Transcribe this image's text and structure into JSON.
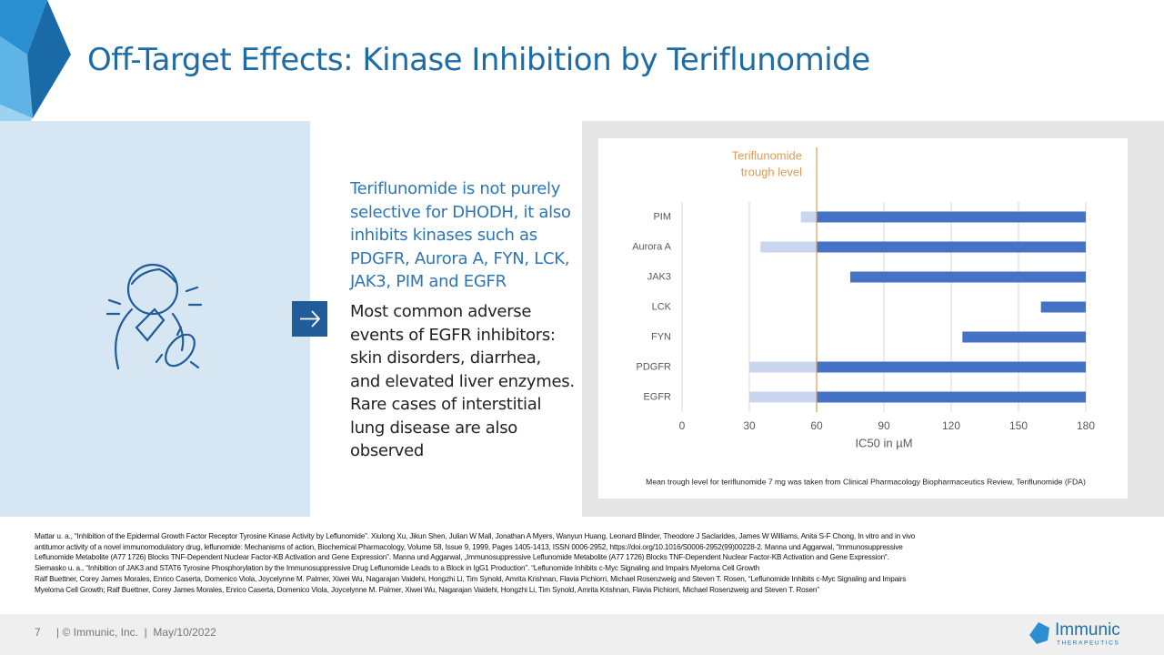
{
  "title": "Off-Target Effects: Kinase Inhibition by Teriflunomide",
  "body": {
    "highlight_lines": [
      "Teriflunomide is not purely",
      "selective for DHODH, it also",
      "inhibits kinases such as",
      "PDGFR, Aurora A, FYN, LCK,",
      "JAK3, PIM and EGFR"
    ],
    "detail_lines": [
      "Most common adverse",
      "events of EGFR inhibitors:",
      "skin disorders, diarrhea,",
      "and elevated liver enzymes.",
      "Rare cases of interstitial",
      "lung disease are also",
      "observed"
    ]
  },
  "chart_data": {
    "type": "range_bar",
    "categories": [
      "PIM",
      "Aurora A",
      "JAK3",
      "LCK",
      "FYN",
      "PDGFR",
      "EGFR"
    ],
    "low": [
      53,
      35,
      75,
      160,
      125,
      30,
      30
    ],
    "high": [
      180,
      180,
      180,
      180,
      180,
      180,
      180
    ],
    "colors": {
      "above_reference": "#4472c4",
      "below_reference": "#c9d6ee"
    },
    "reference_line": {
      "value": 60,
      "label": [
        "Teriflunomide",
        "trough level"
      ],
      "color": "#e09a55"
    },
    "xlim": [
      0,
      180
    ],
    "xticks": [
      0,
      30,
      60,
      90,
      120,
      150,
      180
    ],
    "xlabel": "IC50 in µM",
    "grid": true,
    "note": "Mean trough level for teriflunomide 7 mg was taken from Clinical Pharmacology Biopharmaceutics Review, Teriflunomide (FDA)"
  },
  "references": [
    "Mattar u. a., “Inhibition of the Epidermal Growth Factor Receptor Tyrosine Kinase Activity by Leflunomide”. Xiulong Xu, Jikun Shen, Julian W Mall, Jonathan A Myers, Wanyun Huang, Leonard Blinder, Theodore J Saclarides, James W Williams, Anita S-F Chong, In vitro and in vivo",
    "antitumor activity of a novel immunomodulatory drug, leflunomide: Mechanisms of action, Biochemical Pharmacology, Volume 58, Issue 9, 1999, Pages 1405-1413, ISSN 0006-2952, https://doi.org/10.1016/S0006-2952(99)00228-2. Manna und Aggarwal, “Immunosuppressive",
    "Leflunomide Metabolite (A77 1726) Blocks TNF-Dependent Nuclear Factor-KB Activation and Gene Expression”. Manna und Aggarwal, „Immunosuppressive Leflunomide Metabolite (A77 1726) Blocks TNF-Dependent Nuclear Factor-KB Activation and Gene Expression“.",
    "Siemasko u. a., “Inhibition of JAK3 and STAT6 Tyrosine Phosphorylation by the Immunosuppressive Drug Leflunomide Leads to a Block in IgG1 Production”. “Leflunomide Inhibits c-Myc Signaling and Impairs Myeloma Cell Growth",
    "Ralf Buettner, Corey James Morales, Enrico Caserta, Domenico Viola, Joycelynne M. Palmer, Xiwei Wu, Nagarajan Vaidehi, Hongzhi Li, Tim Synold, Amrita Krishnan, Flavia Pichiorri, Michael Rosenzweig and Steven T. Rosen, “Leflunomide Inhibits c-Myc Signaling and Impairs",
    "Myeloma Cell Growth; Ralf Buettner, Corey James Morales, Enrico Caserta, Domenico Viola, Joycelynne M. Palmer, Xiwei Wu, Nagarajan Vaidehi, Hongzhi Li, Tim Synold, Amrita Krishnan, Flavia Pichiorri, Michael Rosenzweig and Steven T. Rosen”"
  ],
  "footer": {
    "page": "7",
    "text": "| © Immunic, Inc.  |  May/10/2022",
    "logo": "Immunic",
    "logo_sub": "THERAPEUTICS"
  }
}
